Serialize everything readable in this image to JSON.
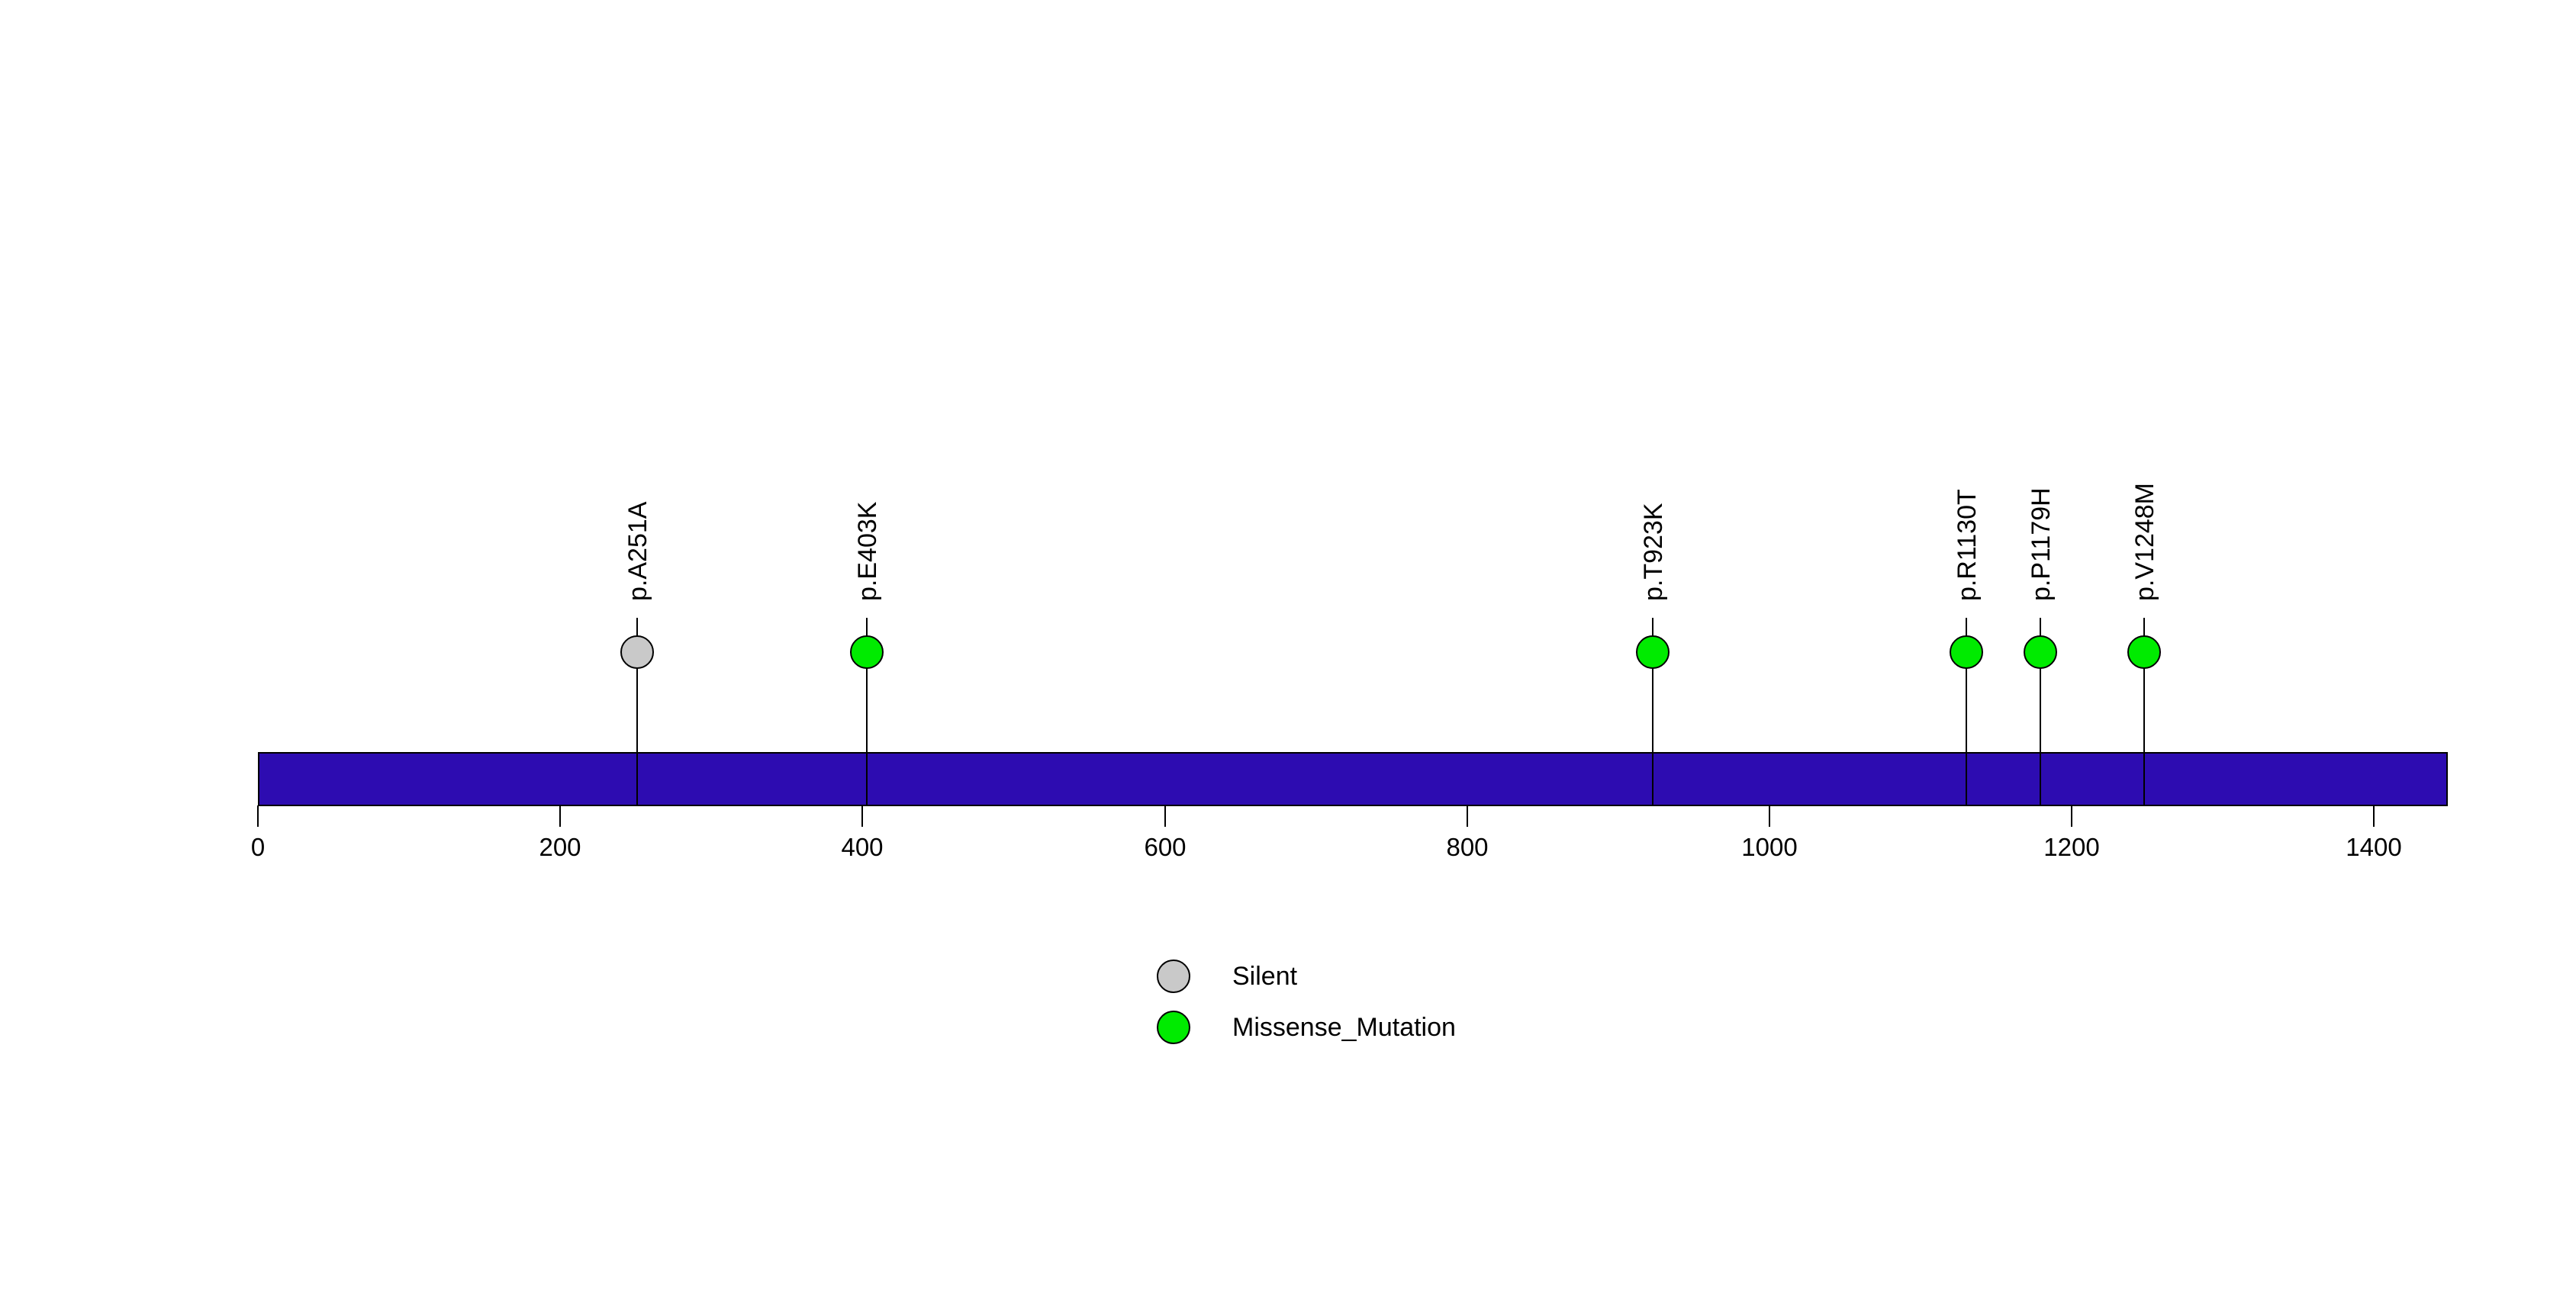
{
  "chart_data": {
    "type": "scatter",
    "subtype": "lollipop_mutation_plot",
    "title": "",
    "xlabel": "",
    "background_color": "#FFFFFF",
    "grid": false,
    "axis": {
      "xlim": [
        0,
        1449
      ],
      "ticks": [
        0,
        200,
        400,
        600,
        800,
        1000,
        1200,
        1400
      ],
      "tick_color": "#000000"
    },
    "protein_bar": {
      "start": 0,
      "end": 1449,
      "fill": "#2D0CB1",
      "stroke": "#000000"
    },
    "mutations": [
      {
        "label": "p.A251A",
        "position": 251,
        "type": "Silent",
        "color": "#C9C9C9"
      },
      {
        "label": "p.E403K",
        "position": 403,
        "type": "Missense_Mutation",
        "color": "#00EB00"
      },
      {
        "label": "p.T923K",
        "position": 923,
        "type": "Missense_Mutation",
        "color": "#00EB00"
      },
      {
        "label": "p.R1130T",
        "position": 1130,
        "type": "Missense_Mutation",
        "color": "#00EB00"
      },
      {
        "label": "p.P1179H",
        "position": 1179,
        "type": "Missense_Mutation",
        "color": "#00EB00"
      },
      {
        "label": "p.V1248M",
        "position": 1248,
        "type": "Missense_Mutation",
        "color": "#00EB00"
      }
    ],
    "legend_position": "bottom-center",
    "legend": [
      {
        "label": "Silent",
        "color": "#C9C9C9"
      },
      {
        "label": "Missense_Mutation",
        "color": "#00EB00"
      }
    ]
  }
}
